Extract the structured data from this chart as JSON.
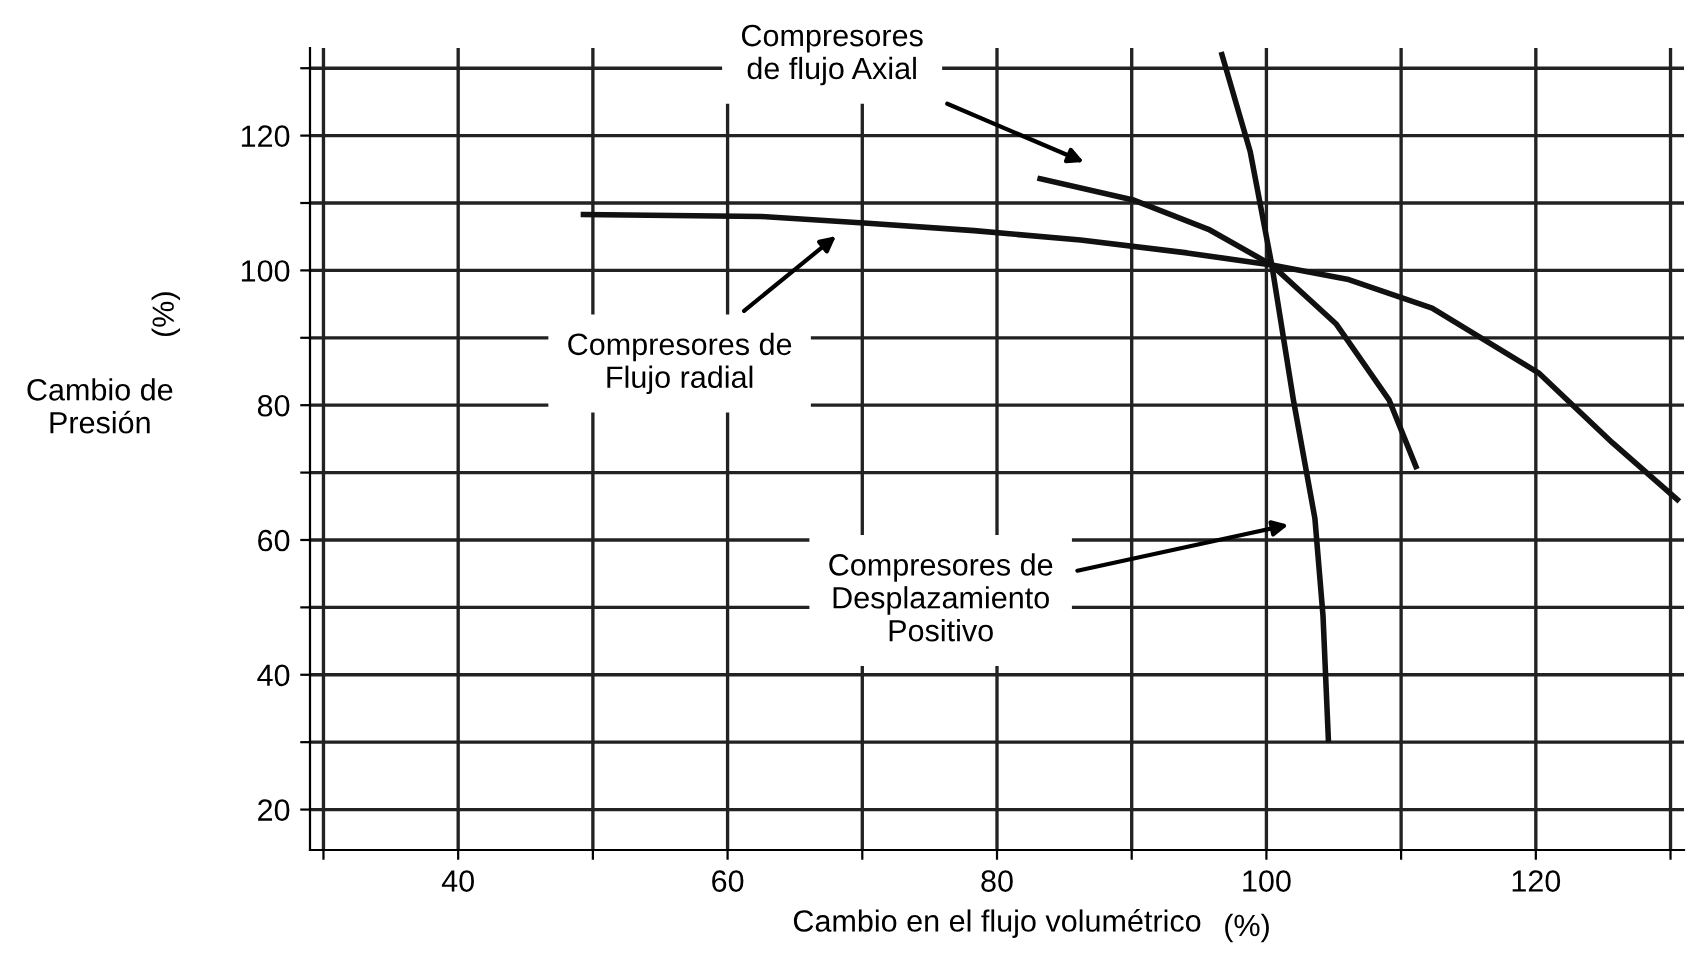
{
  "chart_data": {
    "type": "line",
    "xlabel": "Cambio en el flujo volumétrico",
    "ylabel": "Cambio de\nPresión",
    "xlim": [
      29,
      131
    ],
    "ylim": [
      14,
      133
    ],
    "xticks": [
      {
        "value": 30,
        "label": null
      },
      40,
      {
        "value": 50,
        "label": null
      },
      60,
      {
        "value": 70,
        "label": null
      },
      80,
      {
        "value": 90,
        "label": null
      },
      100,
      {
        "value": 110,
        "label": null
      },
      120,
      {
        "value": 130,
        "label": null
      }
    ],
    "yticks": [
      20,
      {
        "value": 30,
        "label": null
      },
      40,
      {
        "value": 50,
        "label": null
      },
      60,
      {
        "value": 70,
        "label": null
      },
      80,
      {
        "value": 90,
        "label": null
      },
      100,
      {
        "value": 110,
        "label": null
      },
      120,
      {
        "value": 130,
        "label": null
      }
    ],
    "grid": true,
    "legend": false,
    "marker": "none",
    "line_style": "solid",
    "series": [
      {
        "color": "#111111",
        "x": [
          49.3,
          62.5,
          70.4,
          78.3,
          86.2,
          94.1,
          100.4,
          106,
          112.3,
          120.2,
          125.7,
          130.5
        ],
        "values": [
          108.3,
          108,
          107,
          105.9,
          104.5,
          102.6,
          100.8,
          98.7,
          94.4,
          84.8,
          74.4,
          66
        ]
      },
      {
        "color": "#111111",
        "x": [
          83.2,
          90.2,
          95.7,
          100.4,
          105.2,
          109.1,
          111.1
        ],
        "values": [
          113.6,
          110.4,
          106.1,
          100.8,
          92,
          80.8,
          70.9
        ]
      },
      {
        "color": "#111111",
        "x": [
          96.7,
          98.8,
          100.4,
          102,
          103.6,
          104.2,
          104.6
        ],
        "values": [
          132,
          117.6,
          100.8,
          80.8,
          63.2,
          48.8,
          30.4
        ]
      }
    ],
    "annotations": [
      "Compresores\nde flujo Axial",
      "Compresores de\nFlujo radial",
      "Compresores de\nDesplazamiento\nPositivo",
      "(%)",
      "(%)"
    ]
  }
}
